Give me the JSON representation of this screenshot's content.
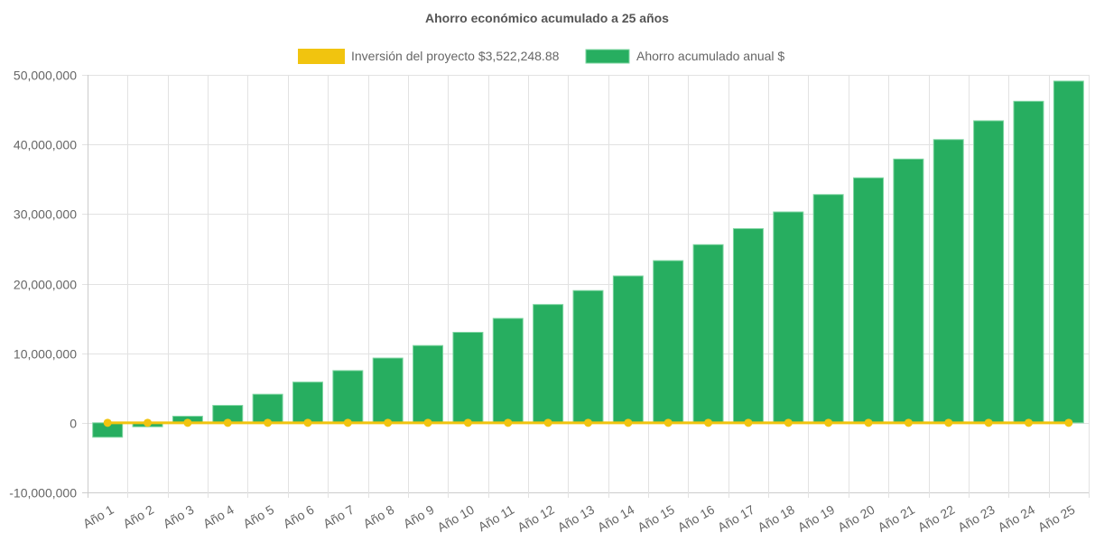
{
  "chart_data": {
    "type": "bar",
    "title": "Ahorro económico acumulado a 25 años",
    "xlabel": "",
    "ylabel": "",
    "categories": [
      "Año 1",
      "Año 2",
      "Año 3",
      "Año 4",
      "Año 5",
      "Año 6",
      "Año 7",
      "Año 8",
      "Año 9",
      "Año 10",
      "Año 11",
      "Año 12",
      "Año 13",
      "Año 14",
      "Año 15",
      "Año 16",
      "Año 17",
      "Año 18",
      "Año 19",
      "Año 20",
      "Año 21",
      "Año 22",
      "Año 23",
      "Año 24",
      "Año 25"
    ],
    "ylim": [
      -10000000,
      50000000
    ],
    "yticks": [
      -10000000,
      0,
      10000000,
      20000000,
      30000000,
      40000000,
      50000000
    ],
    "ytick_labels": [
      "-10,000,000",
      "0",
      "10,000,000",
      "20,000,000",
      "30,000,000",
      "40,000,000",
      "50,000,000"
    ],
    "grid": true,
    "legend_position": "top",
    "series": [
      {
        "name": "Inversión del proyecto $3,522,248.88",
        "type": "line",
        "color": "#f1c40f",
        "values": [
          0,
          0,
          0,
          0,
          0,
          0,
          0,
          0,
          0,
          0,
          0,
          0,
          0,
          0,
          0,
          0,
          0,
          0,
          0,
          0,
          0,
          0,
          0,
          0,
          0
        ]
      },
      {
        "name": "Ahorro acumulado anual $",
        "type": "bar",
        "color": "#27ae60",
        "values": [
          -2070000,
          -570000,
          940000,
          2500000,
          4100000,
          5850000,
          7500000,
          9300000,
          11100000,
          13000000,
          15000000,
          17000000,
          19000000,
          21100000,
          23300000,
          25600000,
          27900000,
          30300000,
          32800000,
          35200000,
          37900000,
          40700000,
          43400000,
          46200000,
          49100000
        ]
      }
    ]
  }
}
